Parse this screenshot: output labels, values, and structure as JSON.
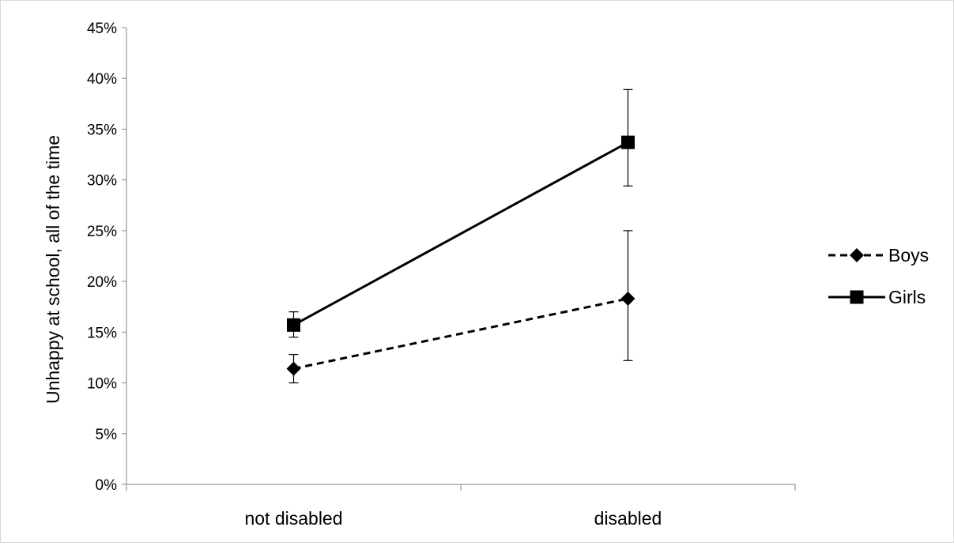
{
  "chart_data": {
    "type": "line",
    "title": "",
    "xlabel": "",
    "ylabel": "Unhappy at school, all of the time",
    "categories": [
      "not disabled",
      "disabled"
    ],
    "ylim": [
      0,
      45
    ],
    "y_unit": "%",
    "y_ticks": [
      "0%",
      "5%",
      "10%",
      "15%",
      "20%",
      "25%",
      "30%",
      "35%",
      "40%",
      "45%"
    ],
    "y_tick_values": [
      0,
      5,
      10,
      15,
      20,
      25,
      30,
      35,
      40,
      45
    ],
    "grid": false,
    "legend_position": "right",
    "series": [
      {
        "name": "Boys",
        "values": [
          11.4,
          18.3
        ],
        "error_low": [
          10.0,
          12.2
        ],
        "error_high": [
          12.8,
          25.0
        ],
        "line_style": "dashed",
        "marker": "diamond",
        "color": "#000000"
      },
      {
        "name": "Girls",
        "values": [
          15.7,
          33.7
        ],
        "error_low": [
          14.5,
          29.4
        ],
        "error_high": [
          17.0,
          38.9
        ],
        "line_style": "solid",
        "marker": "square",
        "color": "#000000"
      }
    ]
  }
}
